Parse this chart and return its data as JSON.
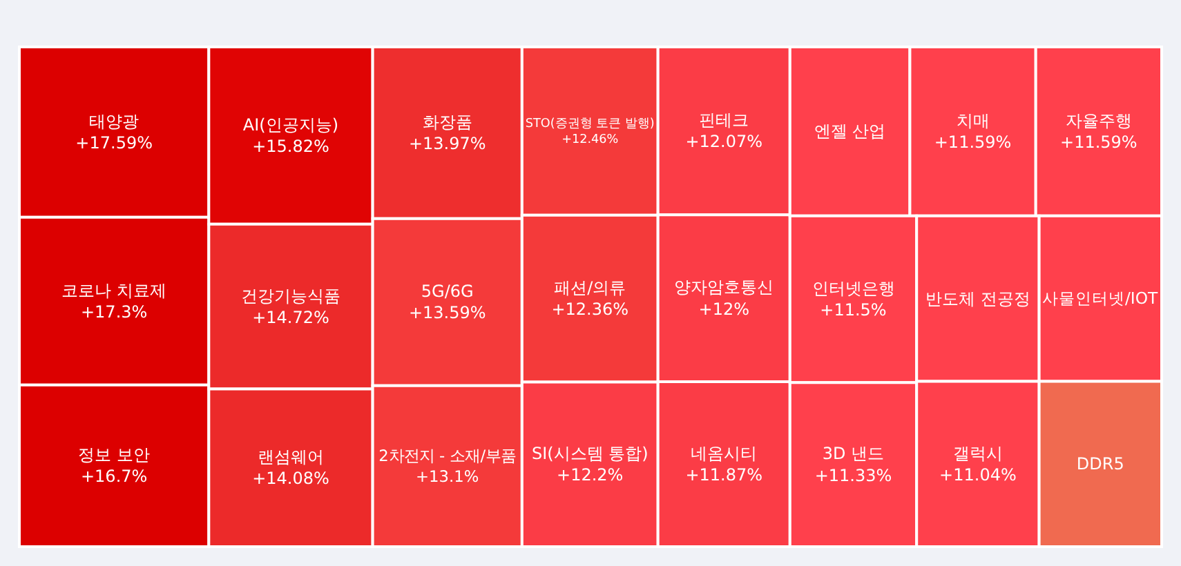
{
  "chart_data": {
    "type": "other",
    "categories": [
      "태양광",
      "코로나 치료제",
      "정보 보안",
      "AI(인공지능)",
      "건강기능식품",
      "랜섬웨어",
      "화장품",
      "5G/6G",
      "2차전지 - 소재/부품",
      "STO(증권형 토큰 발행)",
      "패션/의류",
      "SI(시스템 통합)",
      "핀테크",
      "양자암호통신",
      "네옴시티",
      "엔젤 산업",
      "치매",
      "자율주행",
      "인터넷은행",
      "3D 낸드",
      "반도체 전공정",
      "사물인터넷/IOT",
      "갤럭시",
      "DDR5"
    ],
    "values": [
      17.59,
      17.3,
      16.7,
      15.82,
      14.72,
      14.08,
      13.97,
      13.59,
      13.1,
      12.46,
      12.36,
      12.2,
      12.07,
      12,
      11.87,
      null,
      11.59,
      11.59,
      11.5,
      11.33,
      null,
      null,
      11.04,
      null
    ],
    "value_labels": [
      "+17.59%",
      "+17.3%",
      "+16.7%",
      "+15.82%",
      "+14.72%",
      "+14.08%",
      "+13.97%",
      "+13.59%",
      "+13.1%",
      "+12.46%",
      "+12.36%",
      "+12.2%",
      "+12.07%",
      "+12%",
      "+11.87%",
      null,
      "+11.59%",
      "+11.59%",
      "+11.5%",
      "+11.33%",
      null,
      null,
      "+11.04%",
      null
    ],
    "colors": [
      "#dc0000",
      "#dc0000",
      "#dc0000",
      "#e00404",
      "#ec2a2a",
      "#ec2a2a",
      "#ee2e2e",
      "#f43a3a",
      "#f43a3a",
      "#f43a3a",
      "#f43a3a",
      "#fb3c46",
      "#fb3c46",
      "#fb3c46",
      "#fb3c46",
      "#ff404c",
      "#ff404c",
      "#ff404c",
      "#ff404c",
      "#ff404c",
      "#ff404c",
      "#ff404c",
      "#ff404c",
      "#f06a50"
    ]
  }
}
